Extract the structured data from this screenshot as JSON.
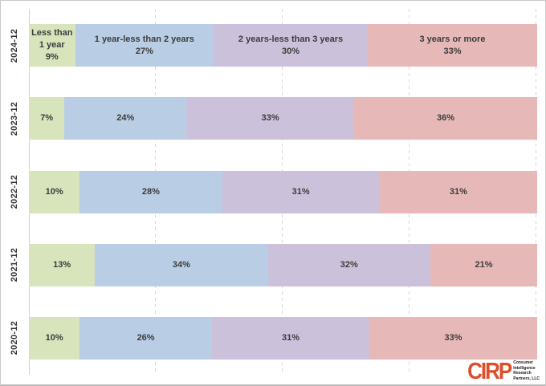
{
  "chart_data": {
    "type": "bar",
    "variant": "horizontal-stacked",
    "title": "",
    "categories": [
      "2024-12",
      "2023-12",
      "2022-12",
      "2021-12",
      "2020-12"
    ],
    "series": [
      {
        "name": "Less than 1 year",
        "color": "#d7e4bc",
        "values": [
          9,
          7,
          10,
          13,
          10
        ]
      },
      {
        "name": "1 year-less than 2 years",
        "color": "#b9cde5",
        "values": [
          27,
          24,
          28,
          34,
          26
        ]
      },
      {
        "name": "2 years-less than 3 years",
        "color": "#ccc1da",
        "values": [
          30,
          33,
          31,
          32,
          31
        ]
      },
      {
        "name": "3 years or more",
        "color": "#e6b9b8",
        "values": [
          33,
          36,
          31,
          21,
          33
        ]
      }
    ],
    "value_label_format": "percent",
    "first_row_shows_series_names": true,
    "xlim": [
      0,
      100
    ],
    "gridline_positions_pct": [
      25,
      50,
      75,
      100
    ],
    "gridline_style": "dashed",
    "legend": "none"
  },
  "logo": {
    "abbr": "CIRP",
    "lines": [
      "Consumer",
      "Intelligence",
      "Research",
      "Partners, LLC"
    ],
    "accent_color": "#dd4f2b"
  }
}
